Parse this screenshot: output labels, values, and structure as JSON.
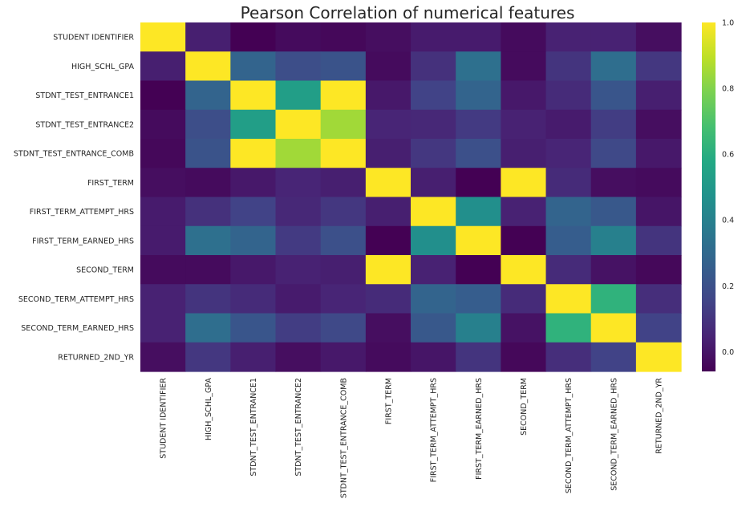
{
  "chart_data": {
    "type": "heatmap",
    "title": "Pearson Correlation of numerical features",
    "colormap": "viridis",
    "labels": [
      "STUDENT IDENTIFIER",
      "HIGH_SCHL_GPA",
      "STDNT_TEST_ENTRANCE1",
      "STDNT_TEST_ENTRANCE2",
      "STDNT_TEST_ENTRANCE_COMB",
      "FIRST_TERM",
      "FIRST_TERM_ATTEMPT_HRS",
      "FIRST_TERM_EARNED_HRS",
      "SECOND_TERM",
      "SECOND_TERM_ATTEMPT_HRS",
      "SECOND_TERM_EARNED_HRS",
      "RETURNED_2ND_YR"
    ],
    "values": [
      [
        1.0,
        0.03,
        -0.06,
        -0.03,
        -0.04,
        -0.02,
        0.02,
        0.02,
        -0.03,
        0.04,
        0.04,
        -0.02
      ],
      [
        0.03,
        1.0,
        0.28,
        0.19,
        0.21,
        -0.03,
        0.09,
        0.33,
        -0.03,
        0.1,
        0.32,
        0.11
      ],
      [
        -0.06,
        0.28,
        1.0,
        0.53,
        1.0,
        0.01,
        0.15,
        0.28,
        0.01,
        0.07,
        0.22,
        0.03
      ],
      [
        -0.03,
        0.19,
        0.53,
        1.0,
        0.85,
        0.05,
        0.06,
        0.12,
        0.04,
        0.02,
        0.13,
        -0.02
      ],
      [
        -0.04,
        0.21,
        1.0,
        0.85,
        1.0,
        0.03,
        0.11,
        0.2,
        0.03,
        0.05,
        0.17,
        0.01
      ],
      [
        -0.02,
        -0.03,
        0.01,
        0.05,
        0.03,
        1.0,
        0.03,
        -0.06,
        1.0,
        0.07,
        -0.02,
        -0.03
      ],
      [
        0.02,
        0.09,
        0.15,
        0.06,
        0.11,
        0.03,
        1.0,
        0.46,
        0.04,
        0.28,
        0.23,
        0.0
      ],
      [
        0.02,
        0.33,
        0.28,
        0.12,
        0.2,
        -0.06,
        0.46,
        1.0,
        -0.06,
        0.25,
        0.4,
        0.1
      ],
      [
        -0.03,
        -0.03,
        0.01,
        0.04,
        0.03,
        1.0,
        0.04,
        -0.06,
        1.0,
        0.07,
        -0.01,
        -0.04
      ],
      [
        0.04,
        0.1,
        0.07,
        0.02,
        0.05,
        0.07,
        0.28,
        0.25,
        0.07,
        1.0,
        0.62,
        0.08
      ],
      [
        0.04,
        0.32,
        0.22,
        0.13,
        0.17,
        -0.02,
        0.23,
        0.4,
        -0.01,
        0.62,
        1.0,
        0.15
      ],
      [
        -0.02,
        0.11,
        0.03,
        -0.02,
        0.01,
        -0.03,
        0.0,
        0.1,
        -0.04,
        0.08,
        0.15,
        1.0
      ]
    ],
    "vmin": -0.06,
    "vmax": 1.0,
    "colorbar_ticks": [
      "0.0",
      "0.2",
      "0.4",
      "0.6",
      "0.8",
      "1.0"
    ],
    "colorbar_tick_values": [
      0.0,
      0.2,
      0.4,
      0.6,
      0.8,
      1.0
    ],
    "grid": false
  }
}
